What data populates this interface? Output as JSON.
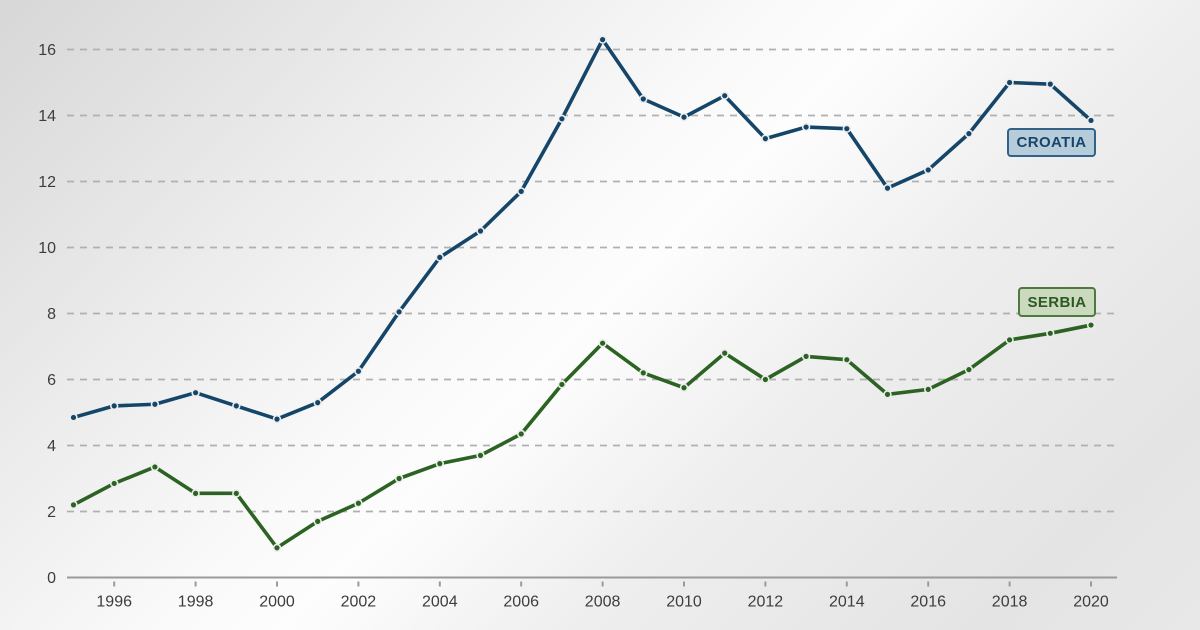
{
  "chart_data": {
    "type": "line",
    "title": "",
    "xlabel": "",
    "ylabel": "",
    "x": [
      1995,
      1996,
      1997,
      1998,
      1999,
      2000,
      2001,
      2002,
      2003,
      2004,
      2005,
      2006,
      2007,
      2008,
      2009,
      2010,
      2011,
      2012,
      2013,
      2014,
      2015,
      2016,
      2017,
      2018,
      2019,
      2020
    ],
    "series": [
      {
        "name": "CROATIA",
        "color": "#154669",
        "label_bg": "#b7ccda",
        "label_border": "#336288",
        "values": [
          4.85,
          5.2,
          5.25,
          5.6,
          5.2,
          4.8,
          5.3,
          6.25,
          8.05,
          9.7,
          10.5,
          11.7,
          13.9,
          16.3,
          14.5,
          13.95,
          14.6,
          13.3,
          13.65,
          13.6,
          11.8,
          12.35,
          13.45,
          15.0,
          14.95,
          13.85
        ]
      },
      {
        "name": "SERBIA",
        "color": "#2c6323",
        "label_bg": "#cbd9bf",
        "label_border": "#4f7a3f",
        "values": [
          2.2,
          2.85,
          3.35,
          2.55,
          2.55,
          0.9,
          1.7,
          2.25,
          3.0,
          3.45,
          3.7,
          4.35,
          5.85,
          7.1,
          6.2,
          5.75,
          6.8,
          6.0,
          6.7,
          6.6,
          5.55,
          5.7,
          6.3,
          7.2,
          7.4,
          7.65
        ]
      }
    ],
    "xticks": [
      1996,
      1998,
      2000,
      2002,
      2004,
      2006,
      2008,
      2010,
      2012,
      2014,
      2016,
      2018,
      2020
    ],
    "yticks": [
      0,
      2,
      4,
      6,
      8,
      10,
      12,
      14,
      16
    ],
    "ylim": [
      0,
      16.5
    ],
    "grid": "horizontal-dashed",
    "legend_position": "inline-right-of-last-points",
    "colors": {
      "gridline": "#b0b0b0",
      "axis": "#9a9a9a",
      "tick_text": "#3d3d3d",
      "marker_halo": "#ececec"
    }
  },
  "labels": {
    "croatia": "CROATIA",
    "serbia": "SERBIA"
  }
}
